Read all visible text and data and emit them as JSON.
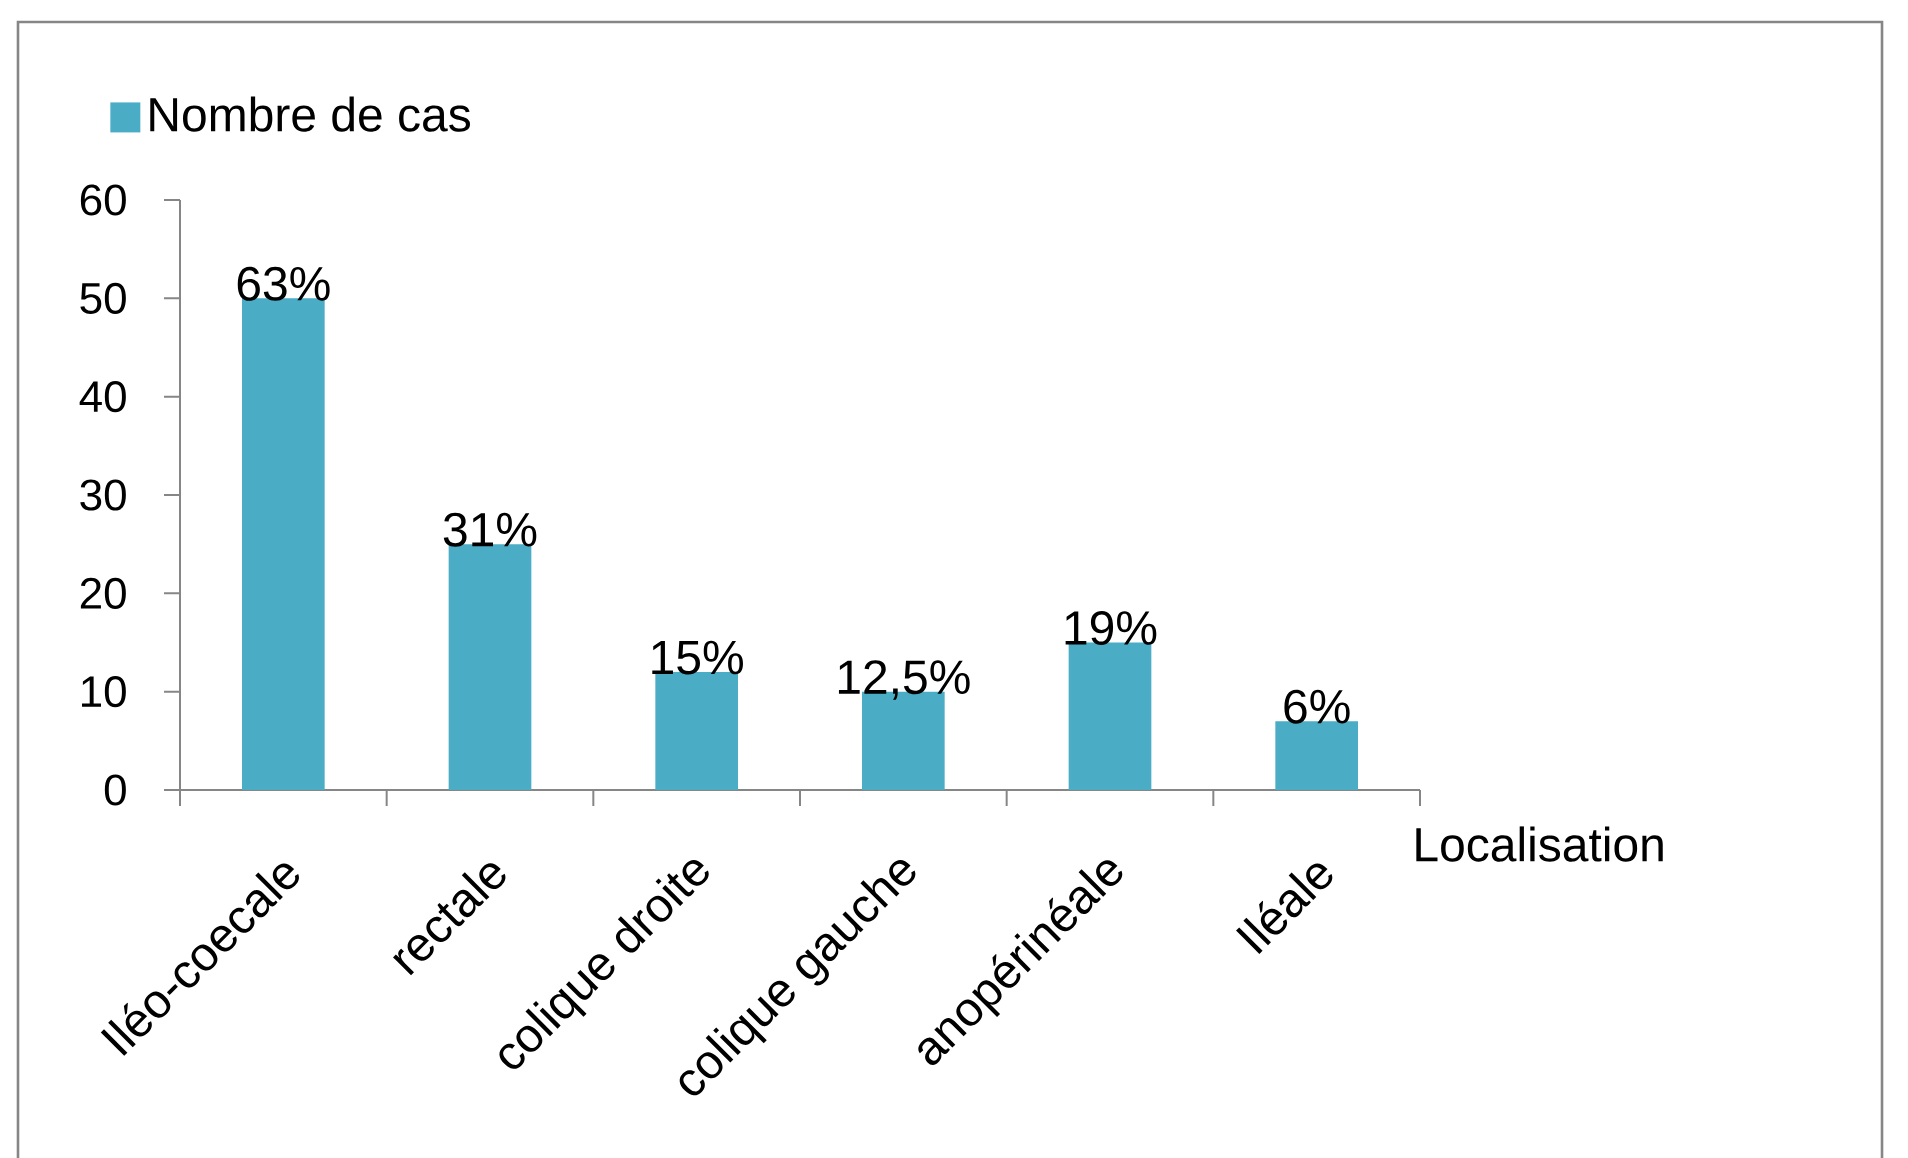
{
  "chart_data": {
    "type": "bar",
    "categories": [
      "Iléo-coecale",
      "rectale",
      "colique droite",
      "colique gauche",
      "anopérinéale",
      "Iléale"
    ],
    "series": [
      {
        "name": "Nombre de cas",
        "color": "#4bacc6",
        "values": [
          50,
          25,
          12,
          10,
          15,
          7
        ]
      }
    ],
    "annotations": [
      {
        "text": "63%",
        "x": "Iléo-coecale",
        "y": 50
      },
      {
        "text": "31%",
        "x": "rectale",
        "y": 25
      },
      {
        "text": "15%",
        "x": "colique droite",
        "y": 12
      },
      {
        "text": "12,5%",
        "x": "colique gauche",
        "y": 10
      },
      {
        "text": "19%",
        "x": "anopérinéale",
        "y": 15
      },
      {
        "text": "6%",
        "x": "Iléale",
        "y": 7
      }
    ],
    "xlabel": "Localisation",
    "ylim": [
      0,
      60
    ],
    "yticks": [
      0,
      10,
      20,
      30,
      40,
      50,
      60
    ],
    "legend": "top left"
  }
}
